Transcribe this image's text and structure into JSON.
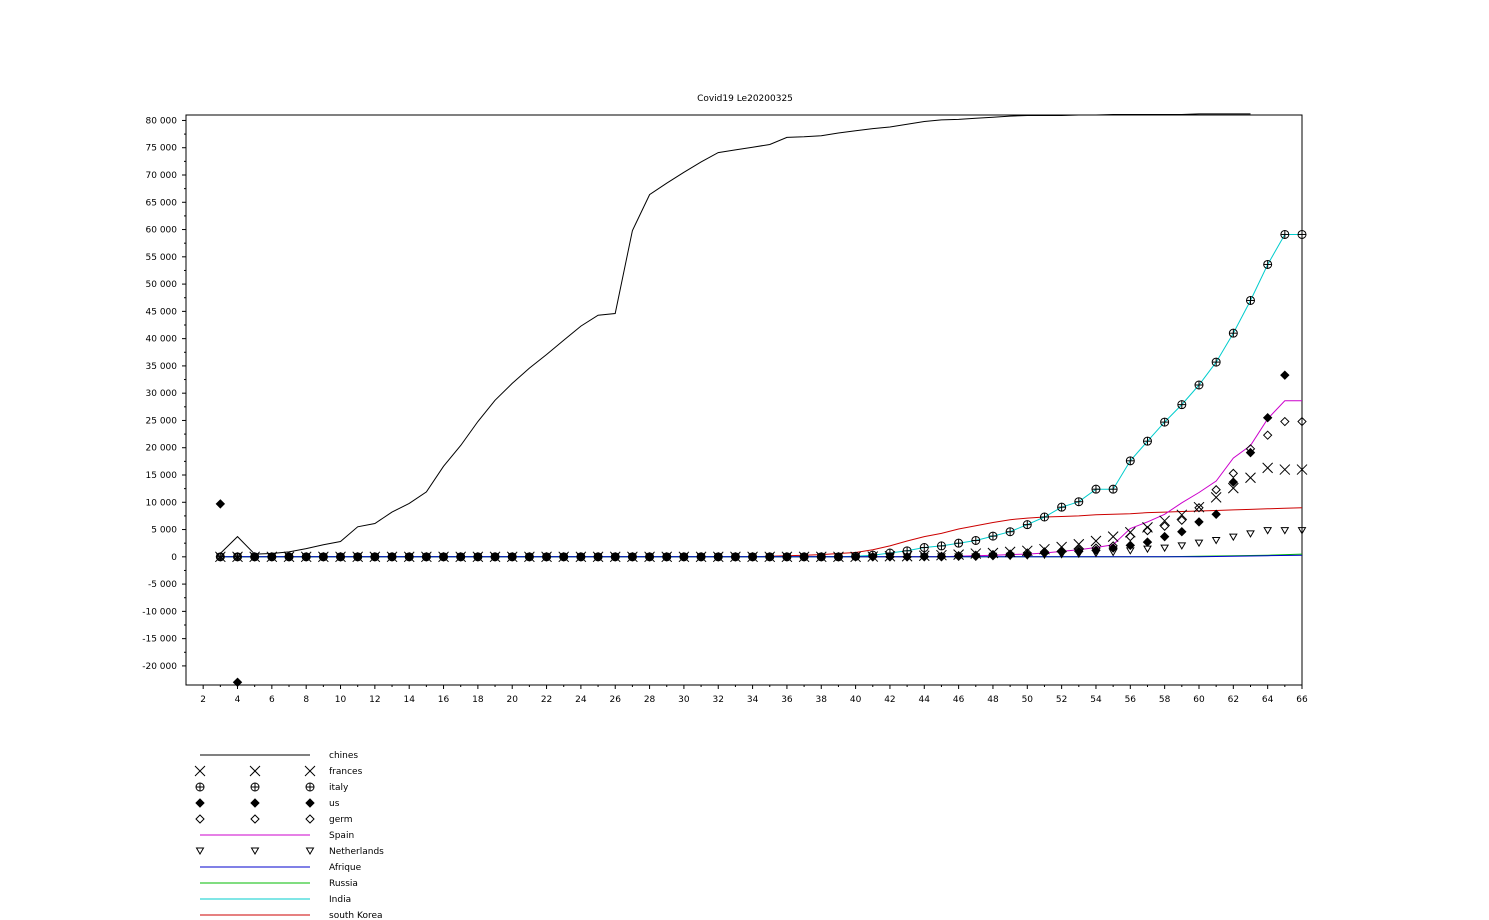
{
  "chart_data": {
    "type": "line",
    "title": "Covid19 Le20200325",
    "xlabel": "",
    "ylabel": "",
    "xlim": [
      1,
      66
    ],
    "ylim": [
      -23500,
      81000
    ],
    "x_ticks": [
      2,
      4,
      6,
      8,
      10,
      12,
      14,
      16,
      18,
      20,
      22,
      24,
      26,
      28,
      30,
      32,
      34,
      36,
      38,
      40,
      42,
      44,
      46,
      48,
      50,
      52,
      54,
      56,
      58,
      60,
      62,
      64,
      66
    ],
    "y_ticks": [
      -20000,
      -15000,
      -10000,
      -5000,
      0,
      5000,
      10000,
      15000,
      20000,
      25000,
      30000,
      35000,
      40000,
      45000,
      50000,
      55000,
      60000,
      65000,
      70000,
      75000,
      80000
    ],
    "y_tick_labels": [
      "-20 000",
      "-15 000",
      "-10 000",
      "-5 000",
      "0",
      "5 000",
      "10 000",
      "15 000",
      "20 000",
      "25 000",
      "30 000",
      "35 000",
      "40 000",
      "45 000",
      "50 000",
      "55 000",
      "60 000",
      "65 000",
      "70 000",
      "75 000",
      "80 000"
    ],
    "grid": false,
    "legend_position": "bottom-left",
    "series": [
      {
        "name": "chines",
        "style": "line",
        "color": "#000000",
        "x": [
          3,
          4,
          5,
          6,
          7,
          8,
          9,
          10,
          11,
          12,
          13,
          14,
          15,
          16,
          17,
          18,
          19,
          20,
          21,
          22,
          23,
          24,
          25,
          26,
          27,
          28,
          29,
          30,
          31,
          32,
          33,
          34,
          35,
          36,
          37,
          38,
          39,
          40,
          41,
          42,
          43,
          44,
          45,
          46,
          47,
          48,
          49,
          50,
          51,
          52,
          53,
          54,
          55,
          56,
          57,
          58,
          59,
          60,
          61,
          62,
          63
        ],
        "y": [
          600,
          3700,
          500,
          600,
          900,
          1500,
          2200,
          2800,
          5500,
          6100,
          8200,
          9800,
          11900,
          16600,
          20400,
          24800,
          28700,
          31800,
          34600,
          37100,
          39700,
          42300,
          44300,
          44600,
          59800,
          66400,
          68500,
          70500,
          72400,
          74100,
          74600,
          75100,
          75600,
          76900,
          77000,
          77200,
          77700,
          78100,
          78500,
          78800,
          79300,
          79800,
          80100,
          80200,
          80400,
          80600,
          80800,
          80900,
          80900,
          80900,
          81000,
          81000,
          81100,
          81100,
          81100,
          81100,
          81100,
          81200,
          81200,
          81200,
          81200
        ]
      },
      {
        "name": "frances",
        "style": "marker",
        "marker": "x",
        "color": "#000000",
        "x": [
          3,
          4,
          5,
          6,
          7,
          8,
          9,
          10,
          11,
          12,
          13,
          14,
          15,
          16,
          17,
          18,
          19,
          20,
          21,
          22,
          23,
          24,
          25,
          26,
          27,
          28,
          29,
          30,
          31,
          32,
          33,
          34,
          35,
          36,
          37,
          38,
          39,
          40,
          41,
          42,
          43,
          44,
          45,
          46,
          47,
          48,
          49,
          50,
          51,
          52,
          53,
          54,
          55,
          56,
          57,
          58,
          59,
          60,
          61,
          62,
          63,
          64,
          65,
          66
        ],
        "y": [
          0,
          0,
          0,
          0,
          0,
          0,
          0,
          0,
          0,
          0,
          0,
          0,
          0,
          0,
          0,
          0,
          0,
          0,
          0,
          0,
          0,
          0,
          0,
          0,
          0,
          0,
          0,
          0,
          0,
          0,
          0,
          0,
          0,
          0,
          0,
          0,
          0,
          0,
          50,
          100,
          100,
          200,
          300,
          400,
          600,
          700,
          900,
          1100,
          1400,
          1800,
          2300,
          2900,
          3700,
          4500,
          5400,
          6600,
          7700,
          9100,
          10900,
          12600,
          14500,
          16300,
          16000,
          16000
        ]
      },
      {
        "name": "italy",
        "style": "marker",
        "marker": "circle-plus",
        "color": "#000000",
        "x": [
          3,
          4,
          5,
          6,
          7,
          8,
          9,
          10,
          11,
          12,
          13,
          14,
          15,
          16,
          17,
          18,
          19,
          20,
          21,
          22,
          23,
          24,
          25,
          26,
          27,
          28,
          29,
          30,
          31,
          32,
          33,
          34,
          35,
          36,
          37,
          38,
          39,
          40,
          41,
          42,
          43,
          44,
          45,
          46,
          47,
          48,
          49,
          50,
          51,
          52,
          53,
          54,
          55,
          56,
          57,
          58,
          59,
          60,
          61,
          62,
          63,
          64,
          65,
          66
        ],
        "y": [
          0,
          0,
          0,
          0,
          0,
          0,
          0,
          0,
          0,
          0,
          0,
          0,
          0,
          0,
          0,
          0,
          0,
          0,
          0,
          0,
          0,
          0,
          0,
          0,
          0,
          0,
          0,
          0,
          0,
          0,
          0,
          0,
          0,
          0,
          0,
          0,
          0,
          100,
          300,
          700,
          1100,
          1700,
          2000,
          2500,
          3000,
          3800,
          4600,
          5900,
          7300,
          9100,
          10100,
          12400,
          12400,
          17600,
          21200,
          24700,
          27900,
          31500,
          35700,
          41000,
          47000,
          53600,
          59100,
          59100
        ]
      },
      {
        "name": "us",
        "style": "marker",
        "marker": "diamond-filled",
        "color": "#000000",
        "x": [
          3,
          4,
          5,
          6,
          7,
          8,
          9,
          10,
          11,
          12,
          13,
          14,
          15,
          16,
          17,
          18,
          19,
          20,
          21,
          22,
          23,
          24,
          25,
          26,
          27,
          28,
          29,
          30,
          31,
          32,
          33,
          34,
          35,
          36,
          37,
          38,
          39,
          40,
          41,
          42,
          43,
          44,
          45,
          46,
          47,
          48,
          49,
          50,
          51,
          52,
          53,
          54,
          55,
          56,
          57,
          58,
          59,
          60,
          61,
          62,
          63,
          64,
          65
        ],
        "y": [
          9700,
          -23000,
          0,
          0,
          0,
          0,
          0,
          0,
          0,
          0,
          0,
          0,
          0,
          0,
          0,
          0,
          0,
          0,
          0,
          0,
          0,
          0,
          0,
          0,
          0,
          0,
          0,
          0,
          0,
          0,
          0,
          0,
          0,
          0,
          0,
          0,
          0,
          0,
          0,
          0,
          0,
          0,
          0,
          100,
          100,
          200,
          300,
          400,
          700,
          900,
          1000,
          1200,
          1600,
          2100,
          2700,
          3700,
          4600,
          6400,
          7800,
          13700,
          19100,
          25500,
          33300
        ]
      },
      {
        "name": "germ",
        "style": "marker",
        "marker": "diamond",
        "color": "#000000",
        "x": [
          3,
          4,
          5,
          6,
          7,
          8,
          9,
          10,
          11,
          12,
          13,
          14,
          15,
          16,
          17,
          18,
          19,
          20,
          21,
          22,
          23,
          24,
          25,
          26,
          27,
          28,
          29,
          30,
          31,
          32,
          33,
          34,
          35,
          36,
          37,
          38,
          39,
          40,
          41,
          42,
          43,
          44,
          45,
          46,
          47,
          48,
          49,
          50,
          51,
          52,
          53,
          54,
          55,
          56,
          57,
          58,
          59,
          60,
          61,
          62,
          63,
          64,
          65,
          66
        ],
        "y": [
          0,
          0,
          0,
          0,
          0,
          0,
          0,
          0,
          0,
          0,
          0,
          0,
          0,
          0,
          0,
          0,
          0,
          0,
          0,
          0,
          0,
          0,
          0,
          0,
          0,
          0,
          0,
          0,
          0,
          0,
          0,
          0,
          0,
          0,
          0,
          0,
          0,
          0,
          0,
          0,
          0,
          100,
          100,
          200,
          300,
          400,
          500,
          700,
          900,
          1100,
          1300,
          1600,
          2000,
          3700,
          4800,
          5600,
          6700,
          9000,
          12300,
          15300,
          19800,
          22300,
          24800,
          24800
        ]
      },
      {
        "name": "Spain",
        "style": "line",
        "color": "#cc00cc",
        "x": [
          3,
          4,
          5,
          6,
          7,
          8,
          9,
          10,
          11,
          12,
          13,
          14,
          15,
          16,
          17,
          18,
          19,
          20,
          21,
          22,
          23,
          24,
          25,
          26,
          27,
          28,
          29,
          30,
          31,
          32,
          33,
          34,
          35,
          36,
          37,
          38,
          39,
          40,
          41,
          42,
          43,
          44,
          45,
          46,
          47,
          48,
          49,
          50,
          51,
          52,
          53,
          54,
          55,
          56,
          57,
          58,
          59,
          60,
          61,
          62,
          63,
          64,
          65,
          66
        ],
        "y": [
          0,
          0,
          0,
          0,
          0,
          0,
          0,
          0,
          0,
          0,
          0,
          0,
          0,
          0,
          0,
          0,
          0,
          0,
          0,
          0,
          0,
          0,
          0,
          0,
          0,
          0,
          0,
          0,
          0,
          0,
          0,
          0,
          0,
          0,
          0,
          0,
          0,
          0,
          0,
          0,
          0,
          0,
          0,
          100,
          200,
          300,
          400,
          500,
          700,
          1000,
          1300,
          1700,
          2200,
          5200,
          6400,
          7800,
          9900,
          11800,
          13900,
          18100,
          20400,
          25300,
          28600,
          28600
        ]
      },
      {
        "name": "Netherlands",
        "style": "marker",
        "marker": "triangle-down",
        "color": "#000000",
        "x": [
          3,
          4,
          5,
          6,
          7,
          8,
          9,
          10,
          11,
          12,
          13,
          14,
          15,
          16,
          17,
          18,
          19,
          20,
          21,
          22,
          23,
          24,
          25,
          26,
          27,
          28,
          29,
          30,
          31,
          32,
          33,
          34,
          35,
          36,
          37,
          38,
          39,
          40,
          41,
          42,
          43,
          44,
          45,
          46,
          47,
          48,
          49,
          50,
          51,
          52,
          53,
          54,
          55,
          56,
          57,
          58,
          59,
          60,
          61,
          62,
          63,
          64,
          65,
          66
        ],
        "y": [
          0,
          0,
          0,
          0,
          0,
          0,
          0,
          0,
          0,
          0,
          0,
          0,
          0,
          0,
          0,
          0,
          0,
          0,
          0,
          0,
          0,
          0,
          0,
          0,
          0,
          0,
          0,
          0,
          0,
          0,
          0,
          0,
          0,
          0,
          0,
          0,
          0,
          0,
          0,
          0,
          0,
          0,
          0,
          0,
          0,
          100,
          100,
          200,
          300,
          400,
          500,
          600,
          800,
          1100,
          1400,
          1600,
          2000,
          2500,
          3000,
          3600,
          4200,
          4800,
          4800,
          4800
        ]
      },
      {
        "name": "Afrique",
        "style": "line",
        "color": "#0000cc",
        "x": [
          3,
          60,
          62,
          64,
          66
        ],
        "y": [
          0,
          0,
          100,
          200,
          300
        ]
      },
      {
        "name": "Russia",
        "style": "line",
        "color": "#00bb00",
        "x": [
          3,
          58,
          60,
          62,
          64,
          66
        ],
        "y": [
          0,
          0,
          100,
          200,
          300,
          500
        ]
      },
      {
        "name": "India",
        "style": "line",
        "color": "#00cccc",
        "x": [
          3,
          4,
          5,
          6,
          7,
          8,
          9,
          10,
          11,
          12,
          13,
          14,
          15,
          16,
          17,
          18,
          19,
          20,
          21,
          22,
          23,
          24,
          25,
          26,
          27,
          28,
          29,
          30,
          31,
          32,
          33,
          34,
          35,
          36,
          37,
          38,
          39,
          40,
          41,
          42,
          43,
          44,
          45,
          46,
          47,
          48,
          49,
          50,
          51,
          52,
          53,
          54,
          55,
          56,
          57,
          58,
          59,
          60,
          61,
          62,
          63,
          64,
          65,
          66
        ],
        "y": [
          0,
          0,
          0,
          0,
          0,
          0,
          0,
          0,
          0,
          0,
          0,
          0,
          0,
          0,
          0,
          0,
          0,
          0,
          0,
          0,
          0,
          0,
          0,
          0,
          0,
          0,
          0,
          0,
          0,
          0,
          0,
          0,
          0,
          0,
          0,
          0,
          0,
          100,
          300,
          700,
          1100,
          1700,
          2000,
          2500,
          3000,
          3800,
          4600,
          5900,
          7300,
          9100,
          10100,
          12400,
          12400,
          17600,
          21200,
          24700,
          27900,
          31500,
          35700,
          41000,
          47000,
          53600,
          59100,
          59100
        ]
      },
      {
        "name": "south Korea",
        "style": "line",
        "color": "#cc0000",
        "x": [
          3,
          4,
          5,
          6,
          7,
          8,
          9,
          10,
          11,
          12,
          13,
          14,
          15,
          16,
          17,
          18,
          19,
          20,
          21,
          22,
          23,
          24,
          25,
          26,
          27,
          28,
          29,
          30,
          31,
          32,
          33,
          34,
          35,
          36,
          37,
          38,
          39,
          40,
          41,
          42,
          43,
          44,
          45,
          46,
          47,
          48,
          49,
          50,
          51,
          52,
          53,
          54,
          55,
          56,
          57,
          58,
          59,
          60,
          61,
          62,
          63,
          64,
          65,
          66
        ],
        "y": [
          0,
          0,
          0,
          0,
          0,
          0,
          0,
          0,
          0,
          0,
          0,
          0,
          0,
          0,
          0,
          0,
          0,
          0,
          0,
          0,
          0,
          0,
          0,
          0,
          0,
          0,
          0,
          0,
          0,
          0,
          0,
          0,
          100,
          200,
          300,
          400,
          600,
          800,
          1300,
          2000,
          2900,
          3700,
          4300,
          5100,
          5700,
          6300,
          6800,
          7100,
          7300,
          7400,
          7500,
          7700,
          7800,
          7900,
          8100,
          8200,
          8300,
          8400,
          8500,
          8600,
          8700,
          8800,
          8900,
          9000
        ]
      }
    ]
  }
}
